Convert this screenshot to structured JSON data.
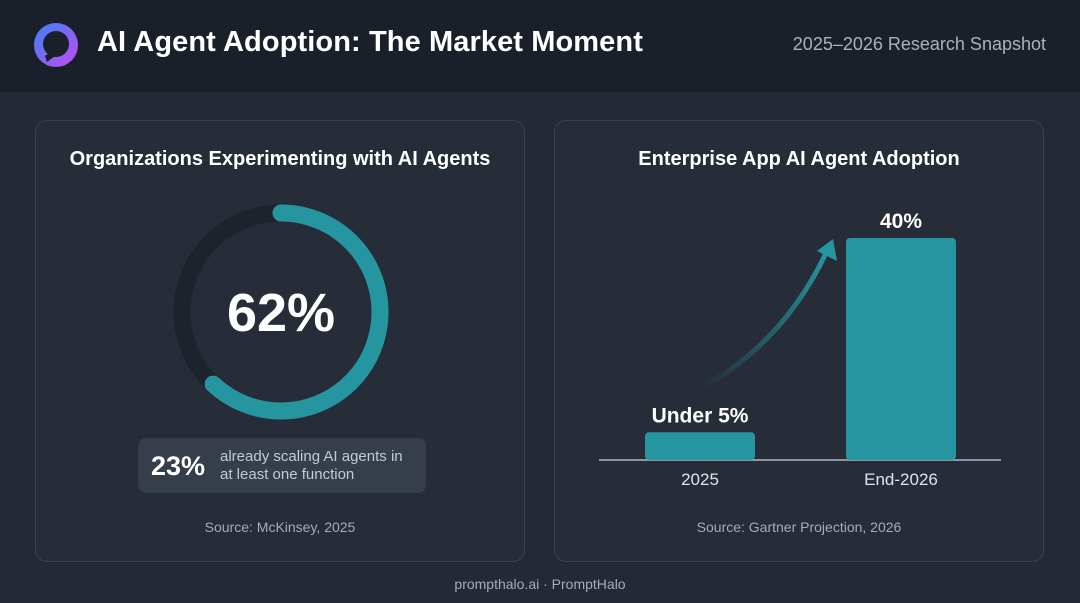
{
  "header": {
    "title": "AI Agent Adoption: The Market Moment",
    "subtitle": "2025–2026 Research Snapshot",
    "logo_icon": "halo-ring-icon"
  },
  "colors": {
    "accent": "#2596a0",
    "track": "#1d232c",
    "logo_gradient": [
      "#3b82f6",
      "#a855f7"
    ]
  },
  "chart_data": [
    {
      "type": "pie",
      "title": "Organizations Experimenting with AI Agents",
      "value_label": "62%",
      "values": [
        62,
        38
      ],
      "callout": {
        "value": "23%",
        "text": "already scaling AI agents in at least one function"
      },
      "source": "Source: McKinsey, 2025"
    },
    {
      "type": "bar",
      "title": "Enterprise App AI Agent Adoption",
      "categories": [
        "2025",
        "End-2026"
      ],
      "values": [
        5,
        40
      ],
      "data_labels": [
        "Under 5%",
        "40%"
      ],
      "ylim": [
        0,
        40
      ],
      "source": "Source: Gartner Projection, 2026"
    }
  ],
  "footer": "prompthalo.ai · PromptHalo"
}
